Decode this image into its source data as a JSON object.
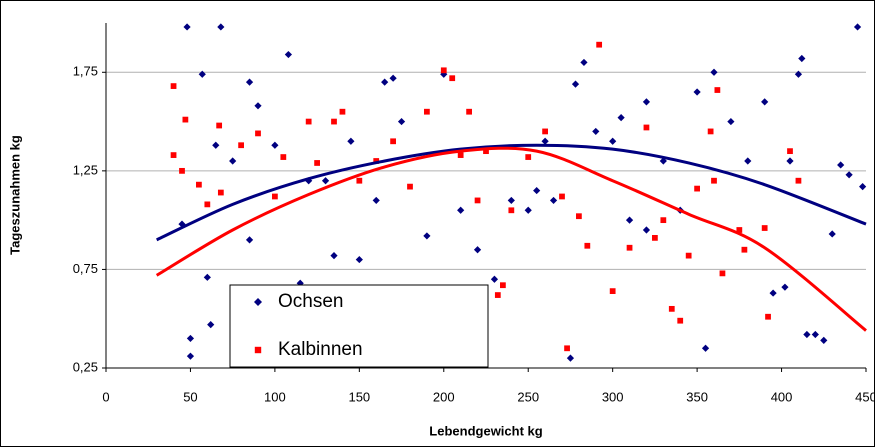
{
  "chart_data": {
    "type": "scatter",
    "xlabel": "Lebendgewicht kg",
    "ylabel": "Tageszunahmen kg",
    "xlim": [
      0,
      450
    ],
    "ylim": [
      0.25,
      2.0
    ],
    "xticks": [
      0,
      50,
      100,
      150,
      200,
      250,
      300,
      350,
      400,
      450
    ],
    "yticks": [
      {
        "value": 0.25,
        "label": "0,25"
      },
      {
        "value": 0.75,
        "label": "0,75"
      },
      {
        "value": 1.25,
        "label": "1,25"
      },
      {
        "value": 1.75,
        "label": "1,75"
      }
    ],
    "grid": true,
    "series": [
      {
        "name": "Ochsen",
        "color": "#000080",
        "marker": "diamond",
        "x": [
          48,
          68,
          445,
          108,
          412,
          410,
          57,
          85,
          170,
          200,
          165,
          45,
          50,
          50,
          62,
          60,
          85,
          65,
          100,
          115,
          135,
          150,
          175,
          190,
          210,
          220,
          230,
          240,
          250,
          255,
          265,
          275,
          278,
          283,
          290,
          300,
          305,
          320,
          330,
          340,
          350,
          355,
          360,
          370,
          380,
          390,
          395,
          402,
          415,
          420,
          425,
          435,
          440,
          448,
          430,
          405,
          320,
          310,
          260,
          145,
          120,
          90,
          75,
          130,
          160
        ],
        "values": [
          1.98,
          1.98,
          1.98,
          1.84,
          1.82,
          1.74,
          1.74,
          1.7,
          1.72,
          1.74,
          1.7,
          0.98,
          0.4,
          0.31,
          0.47,
          0.71,
          0.9,
          1.38,
          1.38,
          0.68,
          0.82,
          0.8,
          1.5,
          0.92,
          1.05,
          0.85,
          0.7,
          1.1,
          1.05,
          1.15,
          1.1,
          0.3,
          1.69,
          1.8,
          1.45,
          1.4,
          1.52,
          1.6,
          1.3,
          1.05,
          1.65,
          0.35,
          1.75,
          1.5,
          1.3,
          1.6,
          0.63,
          0.66,
          0.42,
          0.42,
          0.39,
          1.28,
          1.23,
          1.17,
          0.93,
          1.3,
          0.95,
          1.0,
          1.4,
          1.4,
          1.2,
          1.58,
          1.3,
          1.2,
          1.1
        ],
        "trend": {
          "x": [
            30,
            75,
            120,
            165,
            210,
            255,
            300,
            345,
            390,
            450
          ],
          "values": [
            0.9,
            1.08,
            1.21,
            1.3,
            1.36,
            1.38,
            1.36,
            1.29,
            1.18,
            0.98
          ]
        }
      },
      {
        "name": "Kalbinnen",
        "color": "#ff0000",
        "marker": "square",
        "x": [
          40,
          40,
          45,
          47,
          55,
          60,
          67,
          68,
          80,
          90,
          100,
          105,
          120,
          125,
          135,
          140,
          150,
          160,
          170,
          180,
          190,
          200,
          205,
          210,
          215,
          220,
          225,
          235,
          232,
          240,
          250,
          260,
          270,
          273,
          280,
          285,
          292,
          300,
          310,
          320,
          325,
          335,
          340,
          345,
          350,
          358,
          362,
          365,
          375,
          378,
          390,
          392,
          405,
          410,
          360,
          330
        ],
        "values": [
          1.68,
          1.33,
          1.25,
          1.51,
          1.18,
          1.08,
          1.48,
          1.14,
          1.38,
          1.44,
          1.12,
          1.32,
          1.5,
          1.29,
          1.5,
          1.55,
          1.2,
          1.3,
          1.4,
          1.17,
          1.55,
          1.76,
          1.72,
          1.33,
          1.55,
          1.1,
          1.35,
          0.67,
          0.62,
          1.05,
          1.32,
          1.45,
          1.12,
          0.35,
          1.02,
          0.87,
          1.89,
          0.64,
          0.86,
          1.47,
          0.91,
          0.55,
          0.49,
          0.82,
          1.16,
          1.45,
          1.66,
          0.73,
          0.95,
          0.85,
          0.96,
          0.51,
          1.35,
          1.2,
          1.2,
          1.0
        ],
        "trend": {
          "x": [
            30,
            75,
            120,
            165,
            210,
            255,
            300,
            345,
            390,
            450
          ],
          "values": [
            0.72,
            0.95,
            1.13,
            1.27,
            1.35,
            1.35,
            1.2,
            1.03,
            0.86,
            0.44
          ]
        }
      }
    ]
  }
}
